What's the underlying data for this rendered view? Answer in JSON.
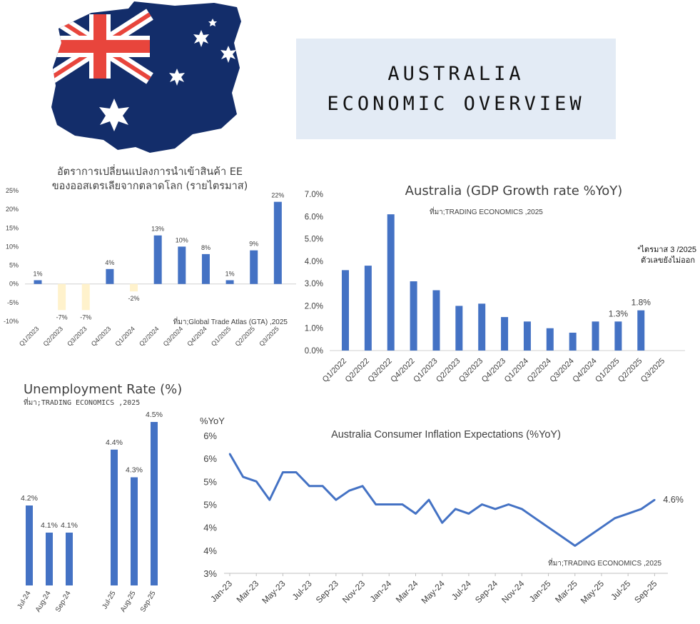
{
  "header": {
    "title_line1": "AUSTRALIA",
    "title_line2": "ECONOMIC OVERVIEW"
  },
  "colors": {
    "bar": "#4472c4",
    "bar_negative": "#fff2cc",
    "line": "#4472c4",
    "title_bg": "#e3ebf5"
  },
  "chart_data": [
    {
      "id": "imports",
      "type": "bar",
      "title_line1": "อัตราการเปลี่ยนแปลงการนำเข้าสินค้า EE",
      "title_line2": "ของออสเตรเลียจากตลาดโลก (รายไตรมาส)",
      "source": "ที่มา;Global Trade Atlas (GTA) ,2025",
      "categories": [
        "Q1/2023",
        "Q2/2023",
        "Q3/2023",
        "Q4/2023",
        "Q1/2024",
        "Q2/2024",
        "Q3/2024",
        "Q4/2024",
        "Q1/2025",
        "Q2/2025",
        "Q3/2025"
      ],
      "values": [
        1,
        -7,
        -7,
        4,
        -2,
        13,
        10,
        8,
        1,
        9,
        22
      ],
      "labels": [
        "1%",
        "-7%",
        "-7%",
        "4%",
        "-2%",
        "13%",
        "10%",
        "8%",
        "1%",
        "9%",
        "22%"
      ],
      "ylim": [
        -10,
        25
      ],
      "yticks": [
        "-10%",
        "-5%",
        "0%",
        "5%",
        "10%",
        "15%",
        "20%",
        "25%"
      ],
      "ytick_values": [
        -10,
        -5,
        0,
        5,
        10,
        15,
        20,
        25
      ]
    },
    {
      "id": "gdp",
      "type": "bar",
      "title": "Australia (GDP Growth rate %YoY)",
      "source": "ที่มา;TRADING ECONOMICS ,2025",
      "note_line1": "*ไตรมาส 3 /2025",
      "note_line2": "ตัวเลขยังไม่ออก",
      "categories": [
        "Q1/2022",
        "Q2/2022",
        "Q3/2022",
        "Q4/2022",
        "Q1/2023",
        "Q2/2023",
        "Q3/2023",
        "Q4/2023",
        "Q1/2024",
        "Q2/2024",
        "Q3/2024",
        "Q4/2024",
        "Q1/2025",
        "Q2/2025",
        "Q3/2025"
      ],
      "values": [
        3.6,
        3.8,
        6.1,
        3.1,
        2.7,
        2.0,
        2.1,
        1.5,
        1.3,
        1.0,
        0.8,
        1.3,
        1.3,
        1.8,
        null
      ],
      "labels": [
        "",
        "",
        "",
        "",
        "",
        "",
        "",
        "",
        "",
        "",
        "",
        "",
        "1.3%",
        "1.8%",
        ""
      ],
      "ylim": [
        0,
        7
      ],
      "yticks": [
        "0.0%",
        "1.0%",
        "2.0%",
        "3.0%",
        "4.0%",
        "5.0%",
        "6.0%",
        "7.0%"
      ],
      "ytick_values": [
        0,
        1,
        2,
        3,
        4,
        5,
        6,
        7
      ]
    },
    {
      "id": "unemployment",
      "type": "bar",
      "title": "Unemployment Rate (%)",
      "source": "ที่มา;TRADING ECONOMICS ,2025",
      "groups": [
        {
          "categories": [
            "Jul-24",
            "Aug-24",
            "Sep-24"
          ],
          "values": [
            4.2,
            4.1,
            4.1
          ],
          "labels": [
            "4.2%",
            "4.1%",
            "4.1%"
          ]
        },
        {
          "categories": [
            "Jul-25",
            "Aug-25",
            "Sep-25"
          ],
          "values": [
            4.4,
            4.3,
            4.5
          ],
          "labels": [
            "4.4%",
            "4.3%",
            "4.5%"
          ]
        }
      ]
    },
    {
      "id": "inflation",
      "type": "line",
      "title": "Australia Consumer Inflation Expectations (%YoY)",
      "ylabel": "%YoY",
      "source": "ที่มา;TRADING ECONOMICS ,2025",
      "end_label": "4.6%",
      "x": [
        "Jan-23",
        "Feb-23",
        "Mar-23",
        "Apr-23",
        "May-23",
        "Jun-23",
        "Jul-23",
        "Aug-23",
        "Sep-23",
        "Oct-23",
        "Nov-23",
        "Dec-23",
        "Jan-24",
        "Feb-24",
        "Mar-24",
        "Apr-24",
        "May-24",
        "Jun-24",
        "Jul-24",
        "Aug-24",
        "Sep-24",
        "Oct-24",
        "Nov-24",
        "Dec-24",
        "Jan-25",
        "Feb-25",
        "Mar-25",
        "Apr-25",
        "May-25",
        "Jun-25",
        "Jul-25",
        "Aug-25",
        "Sep-25",
        "Oct-25"
      ],
      "xticks": [
        "Jan-23",
        "Mar-23",
        "May-23",
        "Jul-23",
        "Sep-23",
        "Nov-23",
        "Jan-24",
        "Mar-24",
        "May-24",
        "Jul-24",
        "Sep-24",
        "Nov-24",
        "Jan-25",
        "Mar-25",
        "May-25",
        "Jul-25",
        "Sep-25"
      ],
      "values": [
        5.6,
        5.1,
        5.0,
        4.6,
        5.2,
        5.2,
        4.9,
        4.9,
        4.6,
        4.8,
        4.9,
        4.5,
        4.5,
        4.5,
        4.3,
        4.6,
        4.1,
        4.4,
        4.3,
        4.5,
        4.4,
        4.5,
        4.4,
        4.2,
        4.0,
        3.8,
        3.6,
        3.8,
        4.0,
        4.2,
        4.3,
        4.4,
        4.6,
        null
      ],
      "ylim": [
        3.0,
        6.0
      ],
      "yticks": [
        "3%",
        "4%",
        "4%",
        "5%",
        "5%",
        "6%",
        "6%"
      ],
      "ytick_values": [
        3.0,
        3.5,
        4.0,
        4.5,
        5.0,
        5.5,
        6.0
      ]
    }
  ]
}
